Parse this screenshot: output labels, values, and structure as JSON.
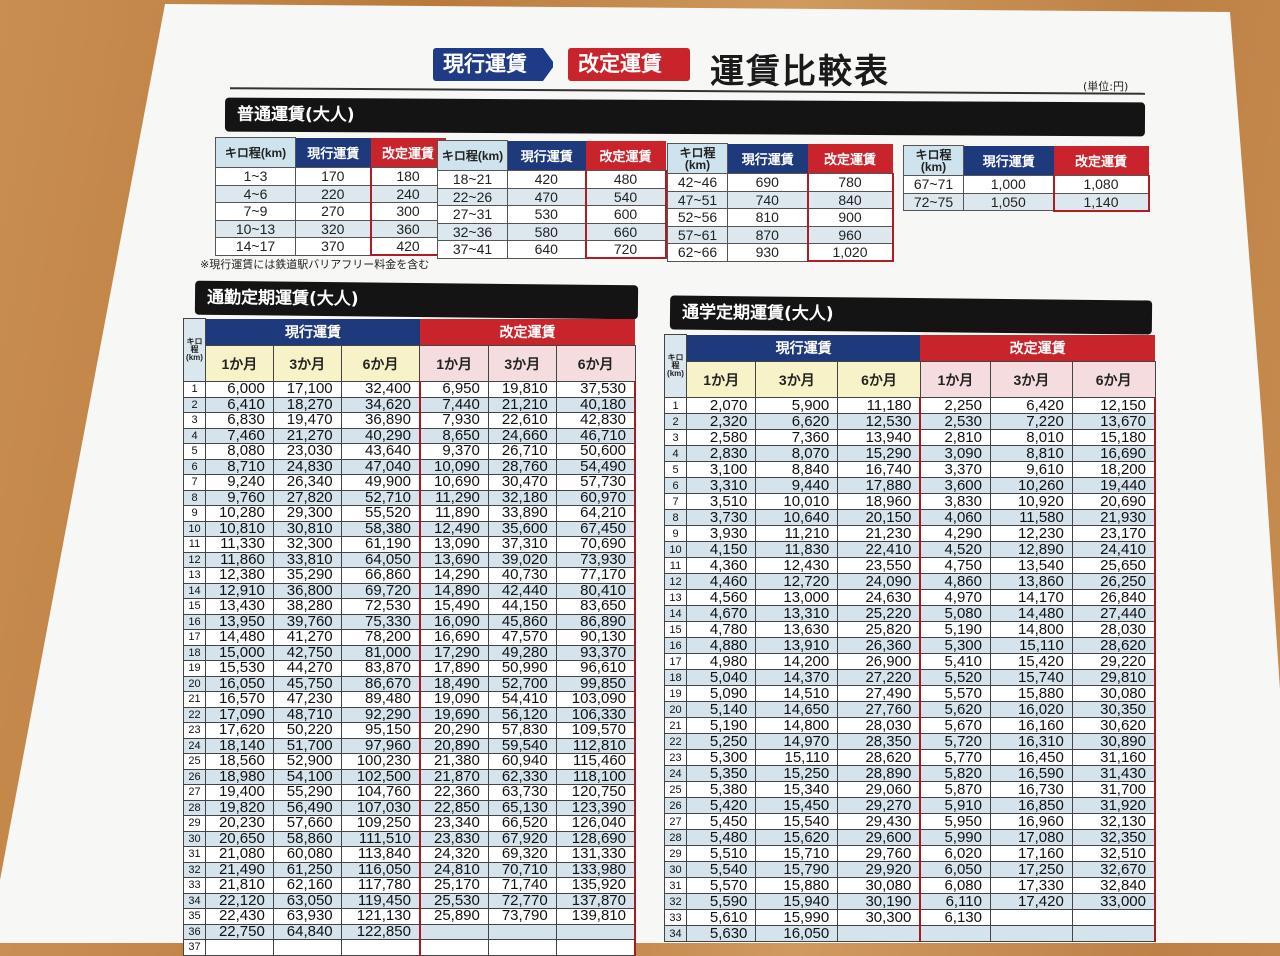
{
  "header": {
    "badge_current": "現行運賃",
    "badge_revised": "改定運賃",
    "title": "運賃比較表",
    "unit": "(単位:円)"
  },
  "colors": {
    "current": "#1f3a7c",
    "revised": "#c9232c",
    "section_bar": "#141414"
  },
  "futsu": {
    "title": "普通運賃(大人)",
    "km_header": "キロ程(km)",
    "current_header": "現行運賃",
    "revised_header": "改定運賃",
    "note": "※現行運賃には鉄道駅バリアフリー料金を含む",
    "groups": [
      [
        [
          "1~3",
          "170",
          "180"
        ],
        [
          "4~6",
          "220",
          "240"
        ],
        [
          "7~9",
          "270",
          "300"
        ],
        [
          "10~13",
          "320",
          "360"
        ],
        [
          "14~17",
          "370",
          "420"
        ]
      ],
      [
        [
          "18~21",
          "420",
          "480"
        ],
        [
          "22~26",
          "470",
          "540"
        ],
        [
          "27~31",
          "530",
          "600"
        ],
        [
          "32~36",
          "580",
          "660"
        ],
        [
          "37~41",
          "640",
          "720"
        ]
      ],
      [
        [
          "42~46",
          "690",
          "780"
        ],
        [
          "47~51",
          "740",
          "840"
        ],
        [
          "52~56",
          "810",
          "900"
        ],
        [
          "57~61",
          "870",
          "960"
        ],
        [
          "62~66",
          "930",
          "1,020"
        ]
      ],
      [
        [
          "67~71",
          "1,000",
          "1,080"
        ],
        [
          "72~75",
          "1,050",
          "1,140"
        ]
      ]
    ]
  },
  "tsukin": {
    "title": "通勤定期運賃(大人)",
    "km_header": "キロ程(km)",
    "current_header": "現行運賃",
    "revised_header": "改定運賃",
    "months": [
      "1か月",
      "3か月",
      "6か月"
    ],
    "rows": [
      [
        "1",
        "6,000",
        "17,100",
        "32,400",
        "6,950",
        "19,810",
        "37,530"
      ],
      [
        "2",
        "6,410",
        "18,270",
        "34,620",
        "7,440",
        "21,210",
        "40,180"
      ],
      [
        "3",
        "6,830",
        "19,470",
        "36,890",
        "7,930",
        "22,610",
        "42,830"
      ],
      [
        "4",
        "7,460",
        "21,270",
        "40,290",
        "8,650",
        "24,660",
        "46,710"
      ],
      [
        "5",
        "8,080",
        "23,030",
        "43,640",
        "9,370",
        "26,710",
        "50,600"
      ],
      [
        "6",
        "8,710",
        "24,830",
        "47,040",
        "10,090",
        "28,760",
        "54,490"
      ],
      [
        "7",
        "9,240",
        "26,340",
        "49,900",
        "10,690",
        "30,470",
        "57,730"
      ],
      [
        "8",
        "9,760",
        "27,820",
        "52,710",
        "11,290",
        "32,180",
        "60,970"
      ],
      [
        "9",
        "10,280",
        "29,300",
        "55,520",
        "11,890",
        "33,890",
        "64,210"
      ],
      [
        "10",
        "10,810",
        "30,810",
        "58,380",
        "12,490",
        "35,600",
        "67,450"
      ],
      [
        "11",
        "11,330",
        "32,300",
        "61,190",
        "13,090",
        "37,310",
        "70,690"
      ],
      [
        "12",
        "11,860",
        "33,810",
        "64,050",
        "13,690",
        "39,020",
        "73,930"
      ],
      [
        "13",
        "12,380",
        "35,290",
        "66,860",
        "14,290",
        "40,730",
        "77,170"
      ],
      [
        "14",
        "12,910",
        "36,800",
        "69,720",
        "14,890",
        "42,440",
        "80,410"
      ],
      [
        "15",
        "13,430",
        "38,280",
        "72,530",
        "15,490",
        "44,150",
        "83,650"
      ],
      [
        "16",
        "13,950",
        "39,760",
        "75,330",
        "16,090",
        "45,860",
        "86,890"
      ],
      [
        "17",
        "14,480",
        "41,270",
        "78,200",
        "16,690",
        "47,570",
        "90,130"
      ],
      [
        "18",
        "15,000",
        "42,750",
        "81,000",
        "17,290",
        "49,280",
        "93,370"
      ],
      [
        "19",
        "15,530",
        "44,270",
        "83,870",
        "17,890",
        "50,990",
        "96,610"
      ],
      [
        "20",
        "16,050",
        "45,750",
        "86,670",
        "18,490",
        "52,700",
        "99,850"
      ],
      [
        "21",
        "16,570",
        "47,230",
        "89,480",
        "19,090",
        "54,410",
        "103,090"
      ],
      [
        "22",
        "17,090",
        "48,710",
        "92,290",
        "19,690",
        "56,120",
        "106,330"
      ],
      [
        "23",
        "17,620",
        "50,220",
        "95,150",
        "20,290",
        "57,830",
        "109,570"
      ],
      [
        "24",
        "18,140",
        "51,700",
        "97,960",
        "20,890",
        "59,540",
        "112,810"
      ],
      [
        "25",
        "18,560",
        "52,900",
        "100,230",
        "21,380",
        "60,940",
        "115,460"
      ],
      [
        "26",
        "18,980",
        "54,100",
        "102,500",
        "21,870",
        "62,330",
        "118,100"
      ],
      [
        "27",
        "19,400",
        "55,290",
        "104,760",
        "22,360",
        "63,730",
        "120,750"
      ],
      [
        "28",
        "19,820",
        "56,490",
        "107,030",
        "22,850",
        "65,130",
        "123,390"
      ],
      [
        "29",
        "20,230",
        "57,660",
        "109,250",
        "23,340",
        "66,520",
        "126,040"
      ],
      [
        "30",
        "20,650",
        "58,860",
        "111,510",
        "23,830",
        "67,920",
        "128,690"
      ],
      [
        "31",
        "21,080",
        "60,080",
        "113,840",
        "24,320",
        "69,320",
        "131,330"
      ],
      [
        "32",
        "21,490",
        "61,250",
        "116,050",
        "24,810",
        "70,710",
        "133,980"
      ],
      [
        "33",
        "21,810",
        "62,160",
        "117,780",
        "25,170",
        "71,740",
        "135,920"
      ],
      [
        "34",
        "22,120",
        "63,050",
        "119,450",
        "25,530",
        "72,770",
        "137,870"
      ],
      [
        "35",
        "22,430",
        "63,930",
        "121,130",
        "25,890",
        "73,790",
        "139,810"
      ],
      [
        "36",
        "22,750",
        "64,840",
        "122,850",
        "",
        "",
        ""
      ],
      [
        "37",
        "",
        "",
        "",
        "",
        "",
        ""
      ]
    ]
  },
  "tsugaku": {
    "title": "通学定期運賃(大人)",
    "km_header": "キロ程(km)",
    "current_header": "現行運賃",
    "revised_header": "改定運賃",
    "months": [
      "1か月",
      "3か月",
      "6か月"
    ],
    "rows": [
      [
        "1",
        "2,070",
        "5,900",
        "11,180",
        "2,250",
        "6,420",
        "12,150"
      ],
      [
        "2",
        "2,320",
        "6,620",
        "12,530",
        "2,530",
        "7,220",
        "13,670"
      ],
      [
        "3",
        "2,580",
        "7,360",
        "13,940",
        "2,810",
        "8,010",
        "15,180"
      ],
      [
        "4",
        "2,830",
        "8,070",
        "15,290",
        "3,090",
        "8,810",
        "16,690"
      ],
      [
        "5",
        "3,100",
        "8,840",
        "16,740",
        "3,370",
        "9,610",
        "18,200"
      ],
      [
        "6",
        "3,310",
        "9,440",
        "17,880",
        "3,600",
        "10,260",
        "19,440"
      ],
      [
        "7",
        "3,510",
        "10,010",
        "18,960",
        "3,830",
        "10,920",
        "20,690"
      ],
      [
        "8",
        "3,730",
        "10,640",
        "20,150",
        "4,060",
        "11,580",
        "21,930"
      ],
      [
        "9",
        "3,930",
        "11,210",
        "21,230",
        "4,290",
        "12,230",
        "23,170"
      ],
      [
        "10",
        "4,150",
        "11,830",
        "22,410",
        "4,520",
        "12,890",
        "24,410"
      ],
      [
        "11",
        "4,360",
        "12,430",
        "23,550",
        "4,750",
        "13,540",
        "25,650"
      ],
      [
        "12",
        "4,460",
        "12,720",
        "24,090",
        "4,860",
        "13,860",
        "26,250"
      ],
      [
        "13",
        "4,560",
        "13,000",
        "24,630",
        "4,970",
        "14,170",
        "26,840"
      ],
      [
        "14",
        "4,670",
        "13,310",
        "25,220",
        "5,080",
        "14,480",
        "27,440"
      ],
      [
        "15",
        "4,780",
        "13,630",
        "25,820",
        "5,190",
        "14,800",
        "28,030"
      ],
      [
        "16",
        "4,880",
        "13,910",
        "26,360",
        "5,300",
        "15,110",
        "28,620"
      ],
      [
        "17",
        "4,980",
        "14,200",
        "26,900",
        "5,410",
        "15,420",
        "29,220"
      ],
      [
        "18",
        "5,040",
        "14,370",
        "27,220",
        "5,520",
        "15,740",
        "29,810"
      ],
      [
        "19",
        "5,090",
        "14,510",
        "27,490",
        "5,570",
        "15,880",
        "30,080"
      ],
      [
        "20",
        "5,140",
        "14,650",
        "27,760",
        "5,620",
        "16,020",
        "30,350"
      ],
      [
        "21",
        "5,190",
        "14,800",
        "28,030",
        "5,670",
        "16,160",
        "30,620"
      ],
      [
        "22",
        "5,250",
        "14,970",
        "28,350",
        "5,720",
        "16,310",
        "30,890"
      ],
      [
        "23",
        "5,300",
        "15,110",
        "28,620",
        "5,770",
        "16,450",
        "31,160"
      ],
      [
        "24",
        "5,350",
        "15,250",
        "28,890",
        "5,820",
        "16,590",
        "31,430"
      ],
      [
        "25",
        "5,380",
        "15,340",
        "29,060",
        "5,870",
        "16,730",
        "31,700"
      ],
      [
        "26",
        "5,420",
        "15,450",
        "29,270",
        "5,910",
        "16,850",
        "31,920"
      ],
      [
        "27",
        "5,450",
        "15,540",
        "29,430",
        "5,950",
        "16,960",
        "32,130"
      ],
      [
        "28",
        "5,480",
        "15,620",
        "29,600",
        "5,990",
        "17,080",
        "32,350"
      ],
      [
        "29",
        "5,510",
        "15,710",
        "29,760",
        "6,020",
        "17,160",
        "32,510"
      ],
      [
        "30",
        "5,540",
        "15,790",
        "29,920",
        "6,050",
        "17,250",
        "32,670"
      ],
      [
        "31",
        "5,570",
        "15,880",
        "30,080",
        "6,080",
        "17,330",
        "32,840"
      ],
      [
        "32",
        "5,590",
        "15,940",
        "30,190",
        "6,110",
        "17,420",
        "33,000"
      ],
      [
        "33",
        "5,610",
        "15,990",
        "30,300",
        "6,130",
        "",
        ""
      ],
      [
        "34",
        "5,630",
        "16,050",
        "",
        "",
        "",
        ""
      ]
    ]
  }
}
